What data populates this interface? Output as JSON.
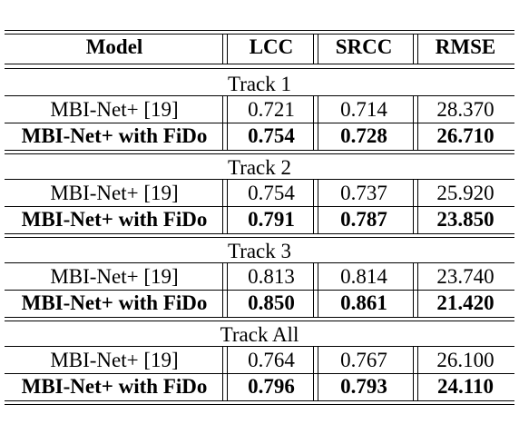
{
  "header": {
    "model": "Model",
    "lcc": "LCC",
    "srcc": "SRCC",
    "rmse": "RMSE"
  },
  "tracks": [
    {
      "name": "Track 1",
      "rows": [
        {
          "model": "MBI-Net+ [19]",
          "lcc": "0.721",
          "srcc": "0.714",
          "rmse": "28.370",
          "bold": false
        },
        {
          "model": "MBI-Net+ with FiDo",
          "lcc": "0.754",
          "srcc": "0.728",
          "rmse": "26.710",
          "bold": true
        }
      ]
    },
    {
      "name": "Track 2",
      "rows": [
        {
          "model": "MBI-Net+ [19]",
          "lcc": "0.754",
          "srcc": "0.737",
          "rmse": "25.920",
          "bold": false
        },
        {
          "model": "MBI-Net+ with FiDo",
          "lcc": "0.791",
          "srcc": "0.787",
          "rmse": "23.850",
          "bold": true
        }
      ]
    },
    {
      "name": "Track 3",
      "rows": [
        {
          "model": "MBI-Net+ [19]",
          "lcc": "0.813",
          "srcc": "0.814",
          "rmse": "23.740",
          "bold": false
        },
        {
          "model": "MBI-Net+ with FiDo",
          "lcc": "0.850",
          "srcc": "0.861",
          "rmse": "21.420",
          "bold": true
        }
      ]
    },
    {
      "name": "Track All",
      "rows": [
        {
          "model": "MBI-Net+ [19]",
          "lcc": "0.764",
          "srcc": "0.767",
          "rmse": "26.100",
          "bold": false
        },
        {
          "model": "MBI-Net+ with FiDo",
          "lcc": "0.796",
          "srcc": "0.793",
          "rmse": "24.110",
          "bold": true
        }
      ]
    }
  ]
}
